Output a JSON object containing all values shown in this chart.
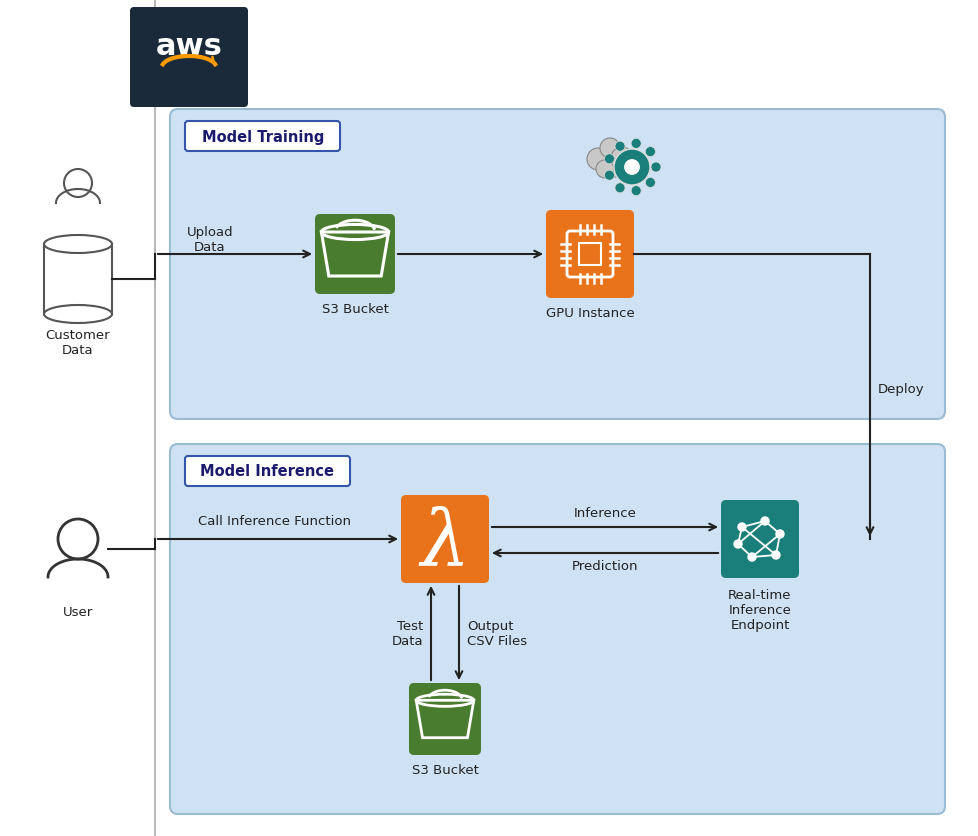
{
  "bg_color": "#ffffff",
  "aws_box_color": "#1b2a3b",
  "light_blue_bg": "#cfe2f3",
  "orange_color": "#e8731a",
  "green_color": "#4a7c2f",
  "teal_color": "#1a7f7a",
  "dark_border": "#333333",
  "section_border": "#5a9fd4",
  "box1_label": "Model Training",
  "box2_label": "Model Inference",
  "s3_label_top": "S3 Bucket",
  "gpu_label": "GPU Instance",
  "endpoint_label": "Real-time\nInference\nEndpoint",
  "s3_label_bot": "S3 Bucket",
  "customer_label": "Customer\nData",
  "user_label": "User",
  "arrow_upload": "Upload\nData",
  "arrow_deploy": "Deploy",
  "arrow_inference": "Inference",
  "arrow_prediction": "Prediction",
  "arrow_testdata": "Test\nData",
  "arrow_outputcsv": "Output\nCSV Files",
  "arrow_call": "Call Inference Function",
  "figw": 9.79,
  "figh": 8.37,
  "dpi": 100
}
